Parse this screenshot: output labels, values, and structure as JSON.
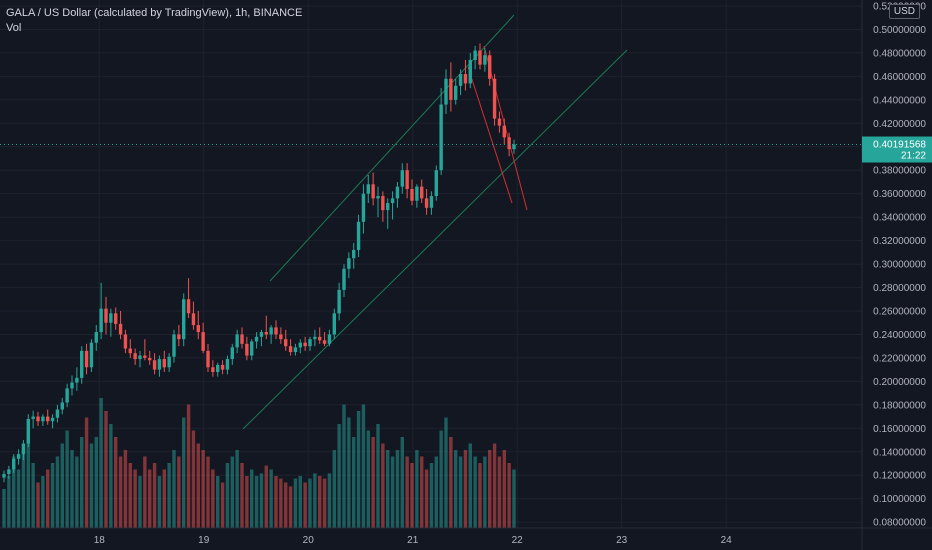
{
  "header": {
    "title": "GALA / US Dollar (calculated by TradingView), 1h, BINANCE",
    "indicator": "Vol"
  },
  "currency": "USD",
  "current_price": {
    "value": "0.40191568",
    "countdown": "21:22",
    "numeric": 0.40191568
  },
  "colors": {
    "background": "#131722",
    "up": "#26a69a",
    "down": "#ef5350",
    "grid": "#1e222d",
    "channel": "#1b7a55",
    "wedge": "#d32f2f",
    "current_line": "#26a69a"
  },
  "chart_data": {
    "type": "candlestick",
    "symbol": "GALA / US Dollar",
    "interval": "1h",
    "exchange": "BINANCE",
    "y_axis": {
      "ylim": [
        0.075,
        0.52
      ],
      "ticks": [
        "0.08000000",
        "0.10000000",
        "0.12000000",
        "0.14000000",
        "0.16000000",
        "0.18000000",
        "0.20000000",
        "0.22000000",
        "0.24000000",
        "0.26000000",
        "0.28000000",
        "0.30000000",
        "0.32000000",
        "0.34000000",
        "0.36000000",
        "0.38000000",
        "0.40000000",
        "0.42000000",
        "0.44000000",
        "0.46000000",
        "0.48000000",
        "0.50000000",
        "0.52000000"
      ],
      "tick_values": [
        0.08,
        0.1,
        0.12,
        0.14,
        0.16,
        0.18,
        0.2,
        0.22,
        0.24,
        0.26,
        0.28,
        0.3,
        0.32,
        0.34,
        0.36,
        0.38,
        0.4,
        0.42,
        0.44,
        0.46,
        0.48,
        0.5,
        0.52
      ]
    },
    "x_axis": {
      "xlim_days": [
        17.05,
        25.3
      ],
      "ticks": [
        "18",
        "19",
        "20",
        "21",
        "22",
        "23",
        "24"
      ],
      "tick_values": [
        18,
        19,
        20,
        21,
        22,
        23,
        24
      ]
    },
    "grid": true,
    "candles": [
      {
        "o": 0.118,
        "h": 0.124,
        "l": 0.114,
        "c": 0.121
      },
      {
        "o": 0.121,
        "h": 0.128,
        "l": 0.117,
        "c": 0.125
      },
      {
        "o": 0.125,
        "h": 0.138,
        "l": 0.122,
        "c": 0.134
      },
      {
        "o": 0.134,
        "h": 0.142,
        "l": 0.129,
        "c": 0.138
      },
      {
        "o": 0.138,
        "h": 0.15,
        "l": 0.133,
        "c": 0.147
      },
      {
        "o": 0.147,
        "h": 0.172,
        "l": 0.144,
        "c": 0.168
      },
      {
        "o": 0.168,
        "h": 0.175,
        "l": 0.16,
        "c": 0.17
      },
      {
        "o": 0.17,
        "h": 0.174,
        "l": 0.162,
        "c": 0.166
      },
      {
        "o": 0.166,
        "h": 0.172,
        "l": 0.162,
        "c": 0.17
      },
      {
        "o": 0.17,
        "h": 0.176,
        "l": 0.163,
        "c": 0.166
      },
      {
        "o": 0.166,
        "h": 0.172,
        "l": 0.16,
        "c": 0.169
      },
      {
        "o": 0.169,
        "h": 0.18,
        "l": 0.165,
        "c": 0.176
      },
      {
        "o": 0.176,
        "h": 0.186,
        "l": 0.172,
        "c": 0.182
      },
      {
        "o": 0.182,
        "h": 0.198,
        "l": 0.178,
        "c": 0.194
      },
      {
        "o": 0.194,
        "h": 0.205,
        "l": 0.188,
        "c": 0.199
      },
      {
        "o": 0.199,
        "h": 0.212,
        "l": 0.192,
        "c": 0.203
      },
      {
        "o": 0.203,
        "h": 0.23,
        "l": 0.198,
        "c": 0.226
      },
      {
        "o": 0.226,
        "h": 0.232,
        "l": 0.206,
        "c": 0.212
      },
      {
        "o": 0.212,
        "h": 0.236,
        "l": 0.208,
        "c": 0.233
      },
      {
        "o": 0.233,
        "h": 0.248,
        "l": 0.226,
        "c": 0.242
      },
      {
        "o": 0.242,
        "h": 0.284,
        "l": 0.236,
        "c": 0.262
      },
      {
        "o": 0.262,
        "h": 0.272,
        "l": 0.24,
        "c": 0.25
      },
      {
        "o": 0.25,
        "h": 0.262,
        "l": 0.238,
        "c": 0.258
      },
      {
        "o": 0.258,
        "h": 0.263,
        "l": 0.244,
        "c": 0.249
      },
      {
        "o": 0.249,
        "h": 0.26,
        "l": 0.236,
        "c": 0.24
      },
      {
        "o": 0.24,
        "h": 0.244,
        "l": 0.224,
        "c": 0.228
      },
      {
        "o": 0.228,
        "h": 0.236,
        "l": 0.22,
        "c": 0.224
      },
      {
        "o": 0.224,
        "h": 0.228,
        "l": 0.214,
        "c": 0.219
      },
      {
        "o": 0.219,
        "h": 0.226,
        "l": 0.212,
        "c": 0.222
      },
      {
        "o": 0.222,
        "h": 0.236,
        "l": 0.218,
        "c": 0.22
      },
      {
        "o": 0.22,
        "h": 0.226,
        "l": 0.214,
        "c": 0.218
      },
      {
        "o": 0.218,
        "h": 0.224,
        "l": 0.206,
        "c": 0.21
      },
      {
        "o": 0.21,
        "h": 0.222,
        "l": 0.204,
        "c": 0.219
      },
      {
        "o": 0.219,
        "h": 0.226,
        "l": 0.208,
        "c": 0.212
      },
      {
        "o": 0.212,
        "h": 0.224,
        "l": 0.208,
        "c": 0.221
      },
      {
        "o": 0.221,
        "h": 0.244,
        "l": 0.216,
        "c": 0.24
      },
      {
        "o": 0.24,
        "h": 0.248,
        "l": 0.23,
        "c": 0.236
      },
      {
        "o": 0.236,
        "h": 0.275,
        "l": 0.23,
        "c": 0.27
      },
      {
        "o": 0.27,
        "h": 0.288,
        "l": 0.254,
        "c": 0.258
      },
      {
        "o": 0.258,
        "h": 0.268,
        "l": 0.244,
        "c": 0.248
      },
      {
        "o": 0.248,
        "h": 0.26,
        "l": 0.236,
        "c": 0.242
      },
      {
        "o": 0.242,
        "h": 0.25,
        "l": 0.224,
        "c": 0.226
      },
      {
        "o": 0.226,
        "h": 0.232,
        "l": 0.208,
        "c": 0.212
      },
      {
        "o": 0.212,
        "h": 0.218,
        "l": 0.204,
        "c": 0.208
      },
      {
        "o": 0.208,
        "h": 0.216,
        "l": 0.204,
        "c": 0.214
      },
      {
        "o": 0.214,
        "h": 0.218,
        "l": 0.206,
        "c": 0.21
      },
      {
        "o": 0.21,
        "h": 0.222,
        "l": 0.206,
        "c": 0.219
      },
      {
        "o": 0.219,
        "h": 0.232,
        "l": 0.214,
        "c": 0.229
      },
      {
        "o": 0.229,
        "h": 0.244,
        "l": 0.224,
        "c": 0.24
      },
      {
        "o": 0.24,
        "h": 0.246,
        "l": 0.228,
        "c": 0.232
      },
      {
        "o": 0.232,
        "h": 0.238,
        "l": 0.218,
        "c": 0.222
      },
      {
        "o": 0.222,
        "h": 0.236,
        "l": 0.218,
        "c": 0.234
      },
      {
        "o": 0.234,
        "h": 0.242,
        "l": 0.228,
        "c": 0.238
      },
      {
        "o": 0.238,
        "h": 0.244,
        "l": 0.23,
        "c": 0.242
      },
      {
        "o": 0.242,
        "h": 0.256,
        "l": 0.236,
        "c": 0.24
      },
      {
        "o": 0.24,
        "h": 0.248,
        "l": 0.232,
        "c": 0.246
      },
      {
        "o": 0.246,
        "h": 0.252,
        "l": 0.236,
        "c": 0.24
      },
      {
        "o": 0.24,
        "h": 0.246,
        "l": 0.232,
        "c": 0.236
      },
      {
        "o": 0.236,
        "h": 0.244,
        "l": 0.226,
        "c": 0.23
      },
      {
        "o": 0.23,
        "h": 0.236,
        "l": 0.222,
        "c": 0.225
      },
      {
        "o": 0.225,
        "h": 0.232,
        "l": 0.222,
        "c": 0.229
      },
      {
        "o": 0.229,
        "h": 0.236,
        "l": 0.224,
        "c": 0.233
      },
      {
        "o": 0.233,
        "h": 0.238,
        "l": 0.226,
        "c": 0.23
      },
      {
        "o": 0.23,
        "h": 0.238,
        "l": 0.226,
        "c": 0.236
      },
      {
        "o": 0.236,
        "h": 0.244,
        "l": 0.23,
        "c": 0.238
      },
      {
        "o": 0.238,
        "h": 0.246,
        "l": 0.232,
        "c": 0.235
      },
      {
        "o": 0.235,
        "h": 0.242,
        "l": 0.23,
        "c": 0.232
      },
      {
        "o": 0.232,
        "h": 0.244,
        "l": 0.23,
        "c": 0.24
      },
      {
        "o": 0.24,
        "h": 0.262,
        "l": 0.236,
        "c": 0.258
      },
      {
        "o": 0.258,
        "h": 0.284,
        "l": 0.252,
        "c": 0.278
      },
      {
        "o": 0.278,
        "h": 0.3,
        "l": 0.272,
        "c": 0.296
      },
      {
        "o": 0.296,
        "h": 0.31,
        "l": 0.288,
        "c": 0.305
      },
      {
        "o": 0.305,
        "h": 0.318,
        "l": 0.296,
        "c": 0.312
      },
      {
        "o": 0.312,
        "h": 0.342,
        "l": 0.306,
        "c": 0.336
      },
      {
        "o": 0.336,
        "h": 0.368,
        "l": 0.326,
        "c": 0.36
      },
      {
        "o": 0.36,
        "h": 0.376,
        "l": 0.352,
        "c": 0.368
      },
      {
        "o": 0.368,
        "h": 0.378,
        "l": 0.35,
        "c": 0.356
      },
      {
        "o": 0.356,
        "h": 0.366,
        "l": 0.34,
        "c": 0.358
      },
      {
        "o": 0.358,
        "h": 0.362,
        "l": 0.336,
        "c": 0.346
      },
      {
        "o": 0.346,
        "h": 0.356,
        "l": 0.33,
        "c": 0.352
      },
      {
        "o": 0.352,
        "h": 0.362,
        "l": 0.338,
        "c": 0.356
      },
      {
        "o": 0.356,
        "h": 0.37,
        "l": 0.348,
        "c": 0.366
      },
      {
        "o": 0.366,
        "h": 0.386,
        "l": 0.36,
        "c": 0.38
      },
      {
        "o": 0.38,
        "h": 0.386,
        "l": 0.356,
        "c": 0.364
      },
      {
        "o": 0.364,
        "h": 0.372,
        "l": 0.35,
        "c": 0.354
      },
      {
        "o": 0.354,
        "h": 0.368,
        "l": 0.348,
        "c": 0.366
      },
      {
        "o": 0.366,
        "h": 0.372,
        "l": 0.352,
        "c": 0.356
      },
      {
        "o": 0.356,
        "h": 0.364,
        "l": 0.342,
        "c": 0.348
      },
      {
        "o": 0.348,
        "h": 0.362,
        "l": 0.342,
        "c": 0.358
      },
      {
        "o": 0.358,
        "h": 0.384,
        "l": 0.354,
        "c": 0.38
      },
      {
        "o": 0.38,
        "h": 0.45,
        "l": 0.376,
        "c": 0.436
      },
      {
        "o": 0.436,
        "h": 0.466,
        "l": 0.428,
        "c": 0.458
      },
      {
        "o": 0.458,
        "h": 0.472,
        "l": 0.43,
        "c": 0.44
      },
      {
        "o": 0.44,
        "h": 0.458,
        "l": 0.436,
        "c": 0.452
      },
      {
        "o": 0.452,
        "h": 0.466,
        "l": 0.444,
        "c": 0.462
      },
      {
        "o": 0.462,
        "h": 0.474,
        "l": 0.448,
        "c": 0.454
      },
      {
        "o": 0.454,
        "h": 0.48,
        "l": 0.45,
        "c": 0.474
      },
      {
        "o": 0.474,
        "h": 0.486,
        "l": 0.466,
        "c": 0.482
      },
      {
        "o": 0.482,
        "h": 0.488,
        "l": 0.466,
        "c": 0.47
      },
      {
        "o": 0.47,
        "h": 0.484,
        "l": 0.464,
        "c": 0.478
      },
      {
        "o": 0.478,
        "h": 0.482,
        "l": 0.452,
        "c": 0.458
      },
      {
        "o": 0.458,
        "h": 0.462,
        "l": 0.418,
        "c": 0.424
      },
      {
        "o": 0.424,
        "h": 0.43,
        "l": 0.412,
        "c": 0.418
      },
      {
        "o": 0.418,
        "h": 0.424,
        "l": 0.402,
        "c": 0.408
      },
      {
        "o": 0.408,
        "h": 0.412,
        "l": 0.392,
        "c": 0.398
      },
      {
        "o": 0.398,
        "h": 0.406,
        "l": 0.394,
        "c": 0.402
      }
    ],
    "volume": [
      0.3,
      0.4,
      0.55,
      0.45,
      0.6,
      0.7,
      0.5,
      0.35,
      0.4,
      0.45,
      0.5,
      0.55,
      0.65,
      0.75,
      0.6,
      0.55,
      0.7,
      0.85,
      0.65,
      0.7,
      1.0,
      0.9,
      0.8,
      0.7,
      0.55,
      0.6,
      0.5,
      0.45,
      0.4,
      0.55,
      0.45,
      0.5,
      0.4,
      0.45,
      0.5,
      0.6,
      0.55,
      0.85,
      0.95,
      0.75,
      0.65,
      0.6,
      0.55,
      0.45,
      0.4,
      0.35,
      0.5,
      0.55,
      0.6,
      0.5,
      0.4,
      0.45,
      0.4,
      0.42,
      0.48,
      0.45,
      0.4,
      0.38,
      0.35,
      0.32,
      0.38,
      0.4,
      0.35,
      0.38,
      0.42,
      0.4,
      0.38,
      0.42,
      0.6,
      0.8,
      0.95,
      0.85,
      0.7,
      0.9,
      0.95,
      0.75,
      0.7,
      0.8,
      0.65,
      0.6,
      0.55,
      0.6,
      0.7,
      0.55,
      0.5,
      0.6,
      0.55,
      0.45,
      0.5,
      0.55,
      0.75,
      0.85,
      0.7,
      0.6,
      0.55,
      0.6,
      0.65,
      0.55,
      0.5,
      0.55,
      0.6,
      0.65,
      0.55,
      0.6,
      0.5,
      0.45
    ]
  }
}
